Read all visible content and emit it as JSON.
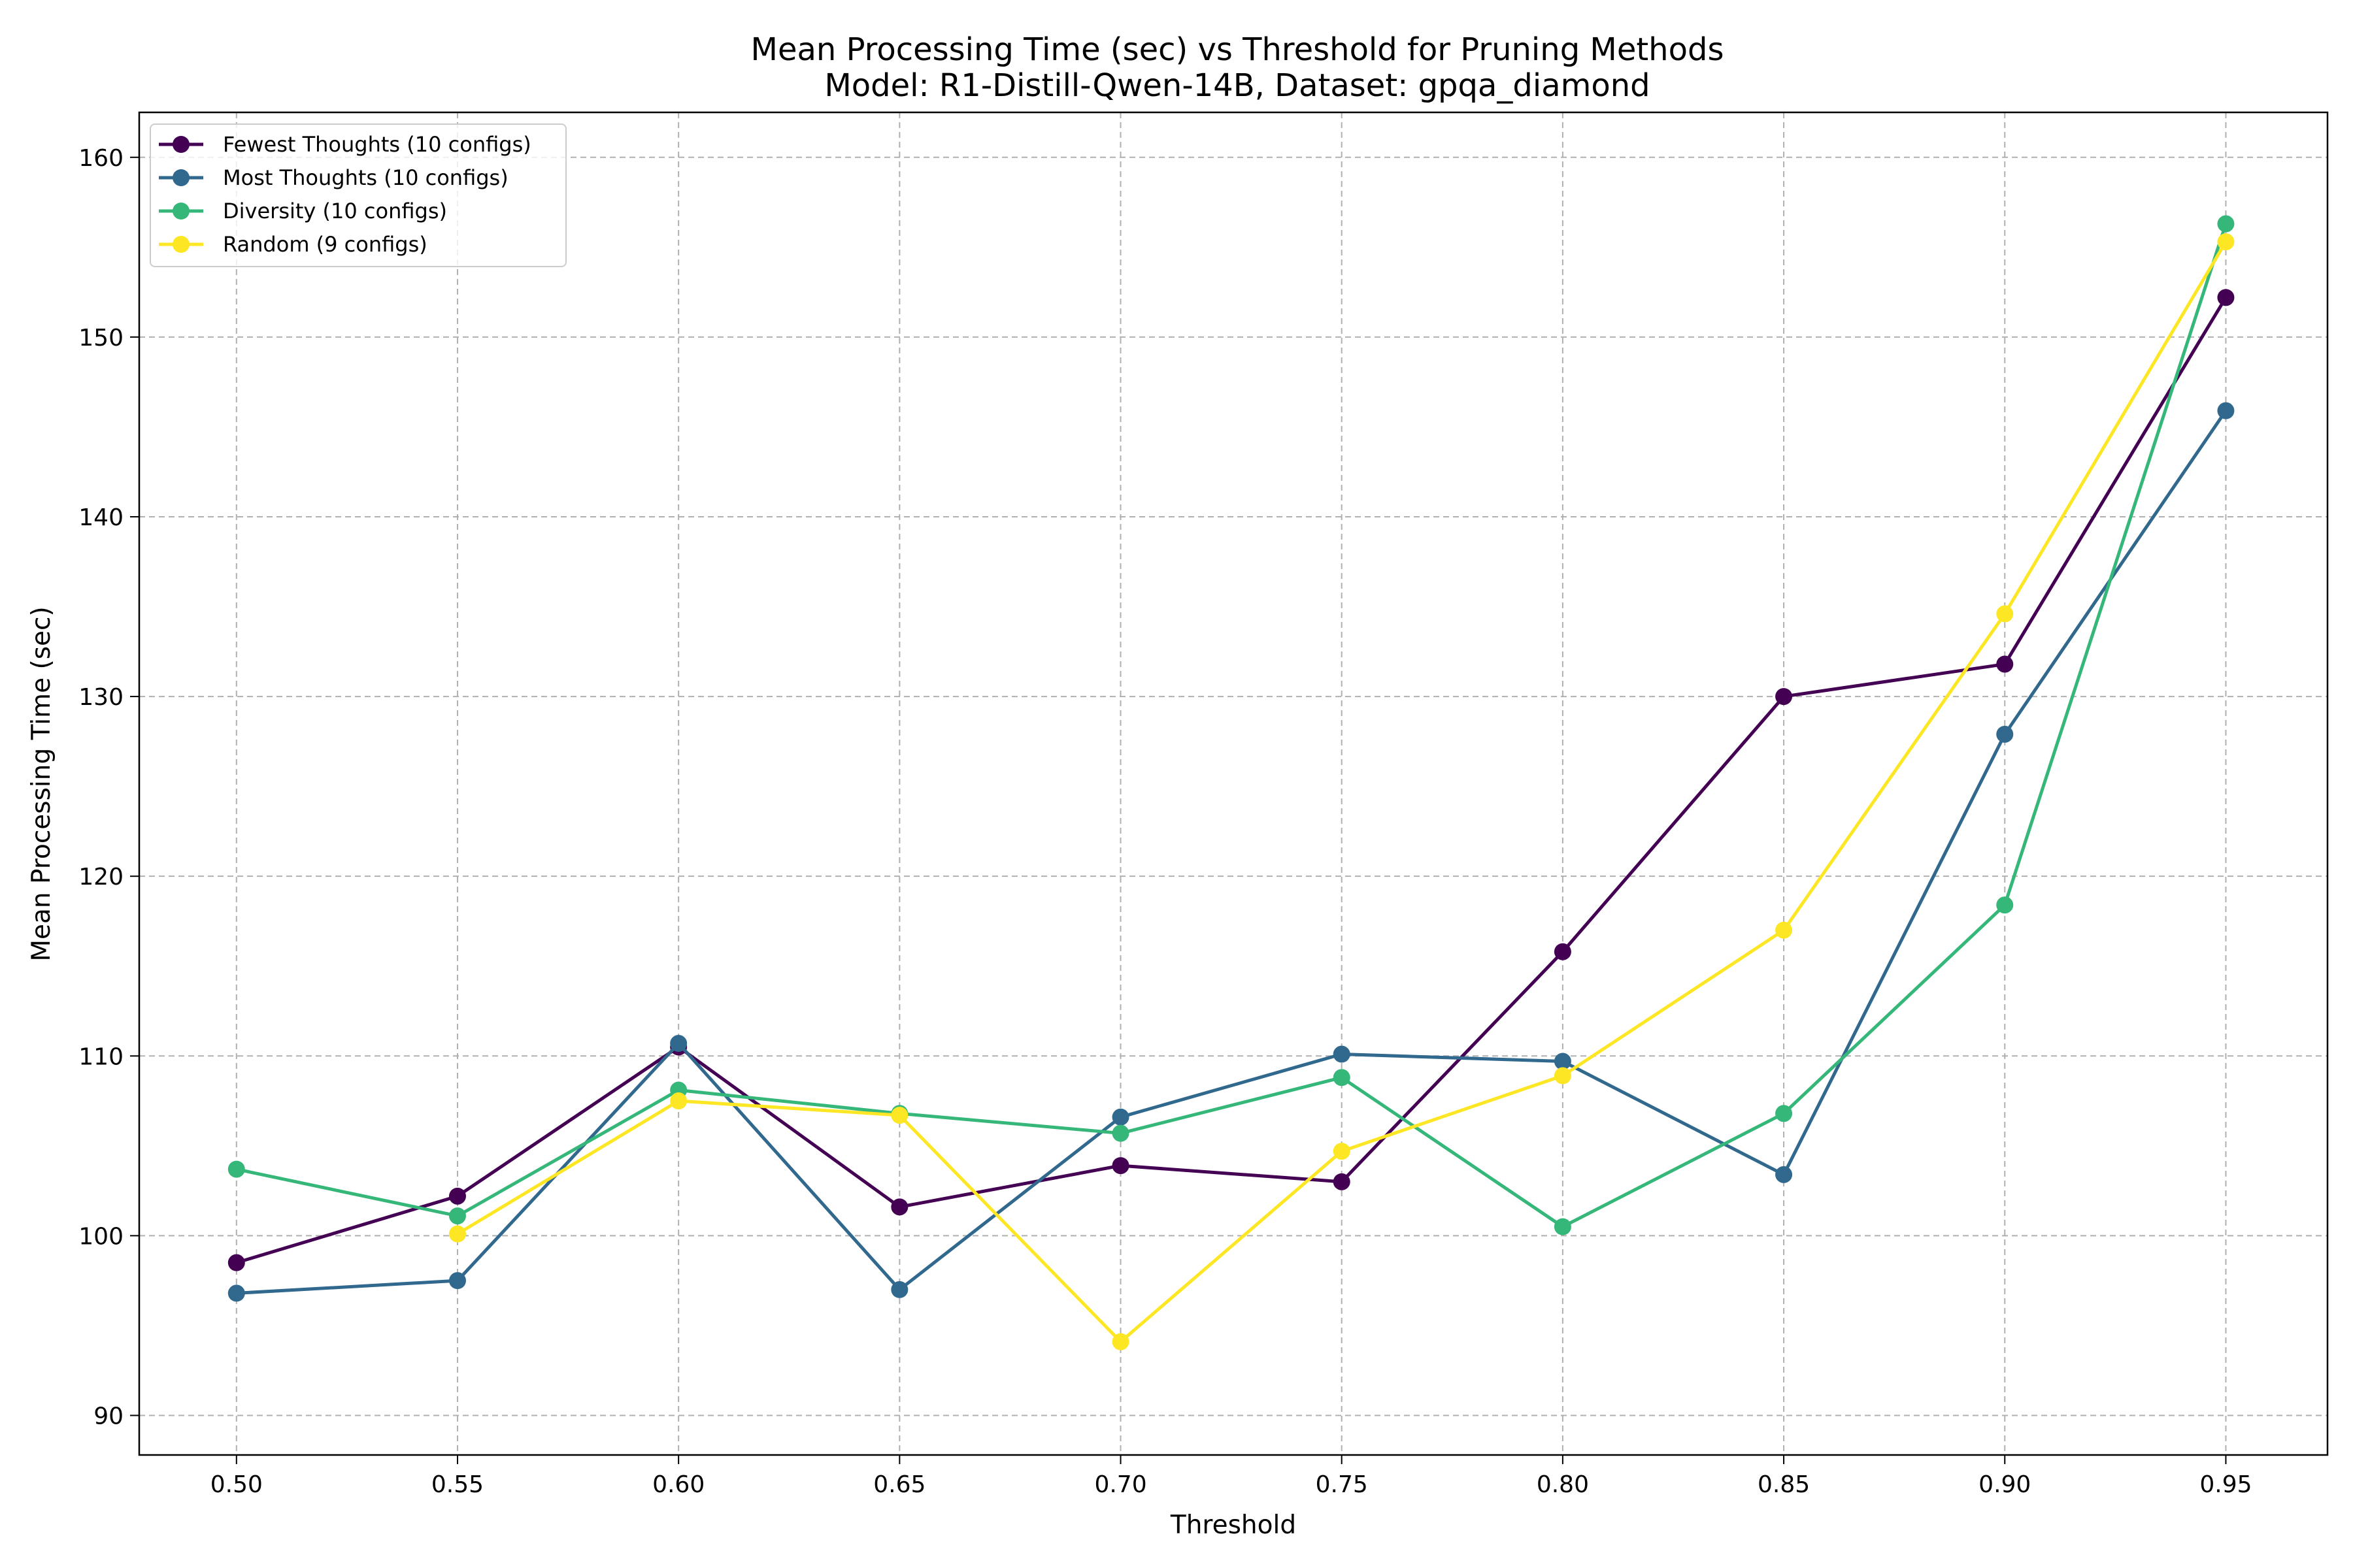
{
  "chart_data": {
    "type": "line",
    "title": "Mean Processing Time (sec) vs Threshold for Pruning Methods",
    "subtitle": "Model: R1-Distill-Qwen-14B, Dataset: gpqa_diamond",
    "xlabel": "Threshold",
    "ylabel": "Mean Processing Time (sec)",
    "xlim": [
      0.478,
      0.973
    ],
    "ylim": [
      87.8,
      162.5
    ],
    "x_ticks": [
      "0.50",
      "0.55",
      "0.60",
      "0.65",
      "0.70",
      "0.75",
      "0.80",
      "0.85",
      "0.90",
      "0.95"
    ],
    "y_ticks": [
      "90",
      "100",
      "110",
      "120",
      "130",
      "140",
      "150",
      "160"
    ],
    "grid": true,
    "legend_position": "top-left",
    "series": [
      {
        "name": "Fewest Thoughts (10 configs)",
        "color": "#440154",
        "x": [
          0.5,
          0.55,
          0.6,
          0.65,
          0.7,
          0.75,
          0.8,
          0.85,
          0.9,
          0.95
        ],
        "y": [
          98.5,
          102.2,
          110.5,
          101.6,
          103.9,
          103.0,
          115.8,
          130.0,
          131.8,
          152.2
        ]
      },
      {
        "name": "Most Thoughts (10 configs)",
        "color": "#31688e",
        "x": [
          0.5,
          0.55,
          0.6,
          0.65,
          0.7,
          0.75,
          0.8,
          0.85,
          0.9,
          0.95
        ],
        "y": [
          96.8,
          97.5,
          110.7,
          97.0,
          106.6,
          110.1,
          109.7,
          103.4,
          127.9,
          145.9
        ]
      },
      {
        "name": "Diversity (10 configs)",
        "color": "#35b779",
        "x": [
          0.5,
          0.55,
          0.6,
          0.65,
          0.7,
          0.75,
          0.8,
          0.85,
          0.9,
          0.95
        ],
        "y": [
          103.7,
          101.1,
          108.1,
          106.8,
          105.7,
          108.8,
          100.5,
          106.8,
          118.4,
          156.3
        ]
      },
      {
        "name": "Random (9 configs)",
        "color": "#fde725",
        "x": [
          0.55,
          0.6,
          0.65,
          0.7,
          0.75,
          0.8,
          0.85,
          0.9,
          0.95
        ],
        "y": [
          100.1,
          107.5,
          106.7,
          94.1,
          104.7,
          108.9,
          117.0,
          134.6,
          155.3
        ]
      }
    ]
  }
}
